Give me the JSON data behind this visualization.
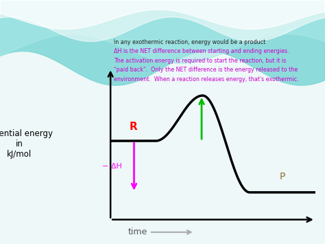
{
  "bg_color": "#f0f0f0",
  "wave_teal_color": "#7dd6d6",
  "wave_white_color": "#e8f8f8",
  "chart_bg": "#f8f8f8",
  "axis_color": "black",
  "curve_color": "black",
  "R_label": "R",
  "R_color": "red",
  "P_label": "P",
  "P_color": "#8B7030",
  "dH_label": "− ΔH",
  "dH_color": "magenta",
  "Ea_arrow_color": "#00bb00",
  "ylabel": "Potential energy\nin\nkJ/mol",
  "xlabel": "time",
  "text_line1": "In any exothermic reaction, energy would be a product",
  "text_line2": "ΔH is the NET difference between starting and ending energies.",
  "text_line3": "The activation energy is required to start the reaction, but it is",
  "text_line4": "\"paid back\".  Only the NET difference is the energy released to the",
  "text_line5": "environment.  When a reaction releases energy, that's exothermic.",
  "text_color_line1": "#222222",
  "text_color_rest": "#cc00cc",
  "reactant_level": 0.52,
  "product_level": 0.18,
  "peak_level": 0.82,
  "curve_lw": 2.5
}
